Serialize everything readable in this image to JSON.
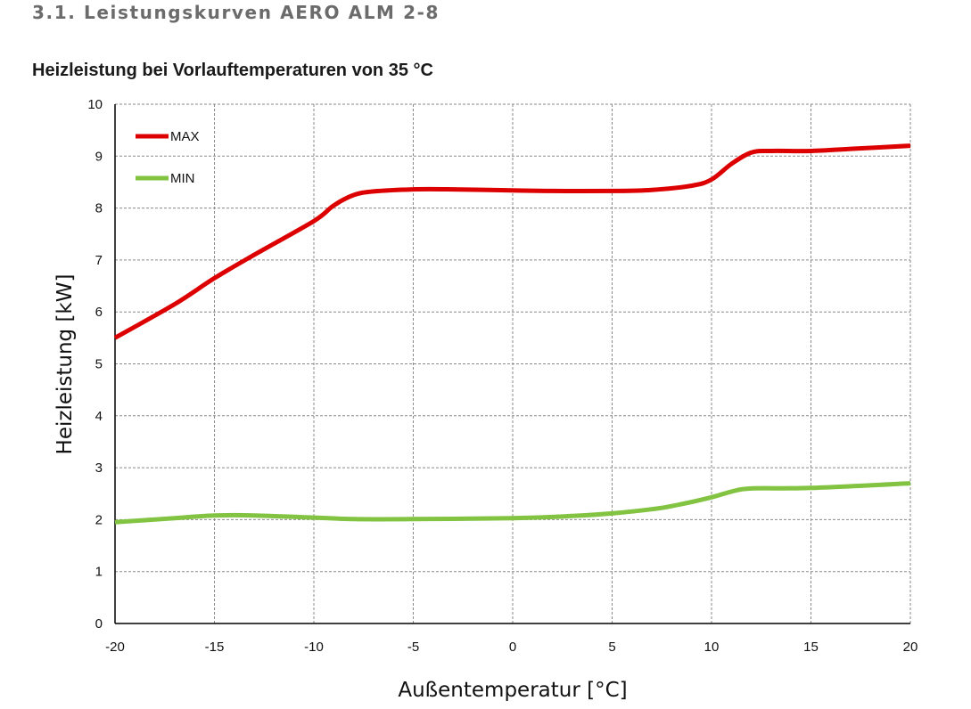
{
  "page": {
    "section_heading": "3.1. Leistungskurven AERO ALM 2-8"
  },
  "chart_data": {
    "type": "line",
    "title": "Heizleistung bei Vorlauftemperaturen von 35 °C",
    "xlabel": "Außentemperatur [°C]",
    "ylabel": "Heizleistung [kW]",
    "xlim": [
      -20,
      20
    ],
    "ylim": [
      0,
      10
    ],
    "xticks": [
      -20,
      -15,
      -10,
      -5,
      0,
      5,
      10,
      15,
      20
    ],
    "yticks": [
      0,
      1,
      2,
      3,
      4,
      5,
      6,
      7,
      8,
      9,
      10
    ],
    "grid": true,
    "legend_position": "top-left",
    "series": [
      {
        "name": "MAX",
        "color": "#dd0000",
        "points": [
          [
            -20,
            5.5
          ],
          [
            -17,
            6.15
          ],
          [
            -15,
            6.65
          ],
          [
            -13,
            7.1
          ],
          [
            -10,
            7.75
          ],
          [
            -9,
            8.05
          ],
          [
            -8,
            8.25
          ],
          [
            -7,
            8.32
          ],
          [
            -5,
            8.36
          ],
          [
            -3,
            8.36
          ],
          [
            0,
            8.34
          ],
          [
            2,
            8.33
          ],
          [
            5,
            8.33
          ],
          [
            7,
            8.35
          ],
          [
            9,
            8.43
          ],
          [
            10,
            8.55
          ],
          [
            11,
            8.85
          ],
          [
            12,
            9.07
          ],
          [
            13,
            9.1
          ],
          [
            15,
            9.1
          ],
          [
            17,
            9.14
          ],
          [
            20,
            9.2
          ]
        ]
      },
      {
        "name": "MIN",
        "color": "#82c341",
        "points": [
          [
            -20,
            1.95
          ],
          [
            -17,
            2.03
          ],
          [
            -15,
            2.08
          ],
          [
            -13,
            2.08
          ],
          [
            -10,
            2.04
          ],
          [
            -8,
            2.01
          ],
          [
            -5,
            2.01
          ],
          [
            0,
            2.03
          ],
          [
            3,
            2.07
          ],
          [
            5,
            2.12
          ],
          [
            7,
            2.2
          ],
          [
            8,
            2.26
          ],
          [
            10,
            2.43
          ],
          [
            11,
            2.54
          ],
          [
            12,
            2.6
          ],
          [
            15,
            2.61
          ],
          [
            20,
            2.7
          ]
        ]
      }
    ]
  }
}
